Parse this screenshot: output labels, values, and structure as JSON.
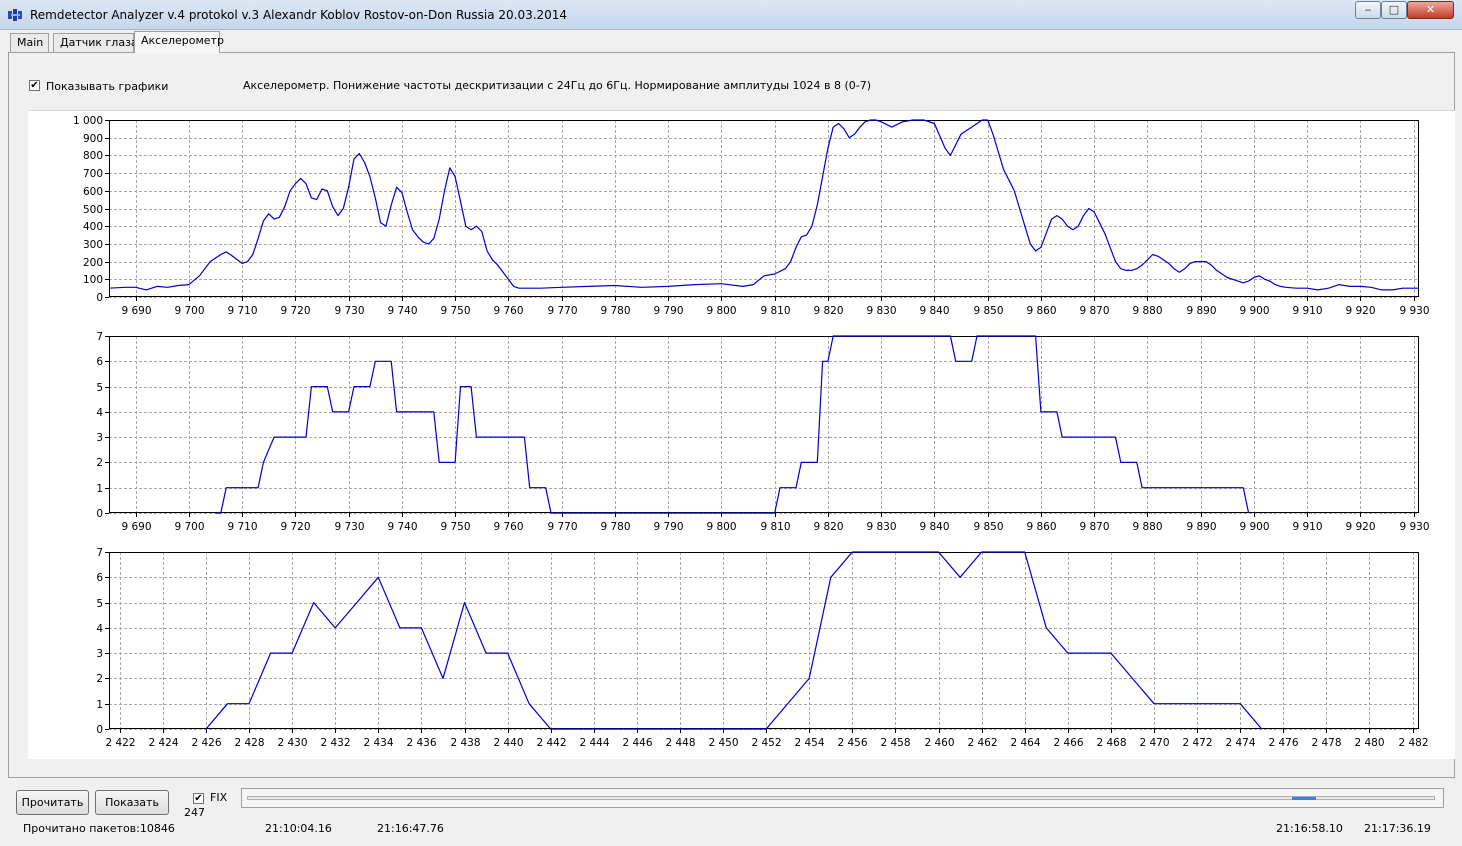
{
  "window": {
    "title": "Remdetector Analyzer v.4 protokol v.3 Alexandr Koblov Rostov-on-Don Russia 20.03.2014",
    "min_glyph": "‒",
    "max_glyph": "□",
    "close_glyph": "✕"
  },
  "tabs": [
    {
      "label": "Main"
    },
    {
      "label": "Датчик глаза"
    },
    {
      "label": "Акселерометр"
    }
  ],
  "controls": {
    "show_graphs_label": "Показывать графики",
    "show_graphs_checked": true,
    "description": "Акселерометр. Понижение частоты дескритизации с 24Гц до 6Гц. Нормирование амплитуды 1024 в 8 (0-7)",
    "check_glyph": "✔"
  },
  "bottom": {
    "read_button": "Прочитать",
    "show_button": "Показать",
    "fix_label": "FIX",
    "fix_checked": true,
    "fix_value": "247",
    "slider_position": 0.89
  },
  "status": {
    "packets": "Прочитано пакетов:10846",
    "time1": "21:10:04.16",
    "time2": "21:16:47.76",
    "time3": "21:16:58.10",
    "time4": "21:17:36.19"
  },
  "colors": {
    "line": "#0000cc",
    "grid": "#a8a8a8",
    "axis": "#000000"
  },
  "chart_data": [
    {
      "type": "line",
      "xlim": [
        9685,
        9931
      ],
      "ylim": [
        0,
        1000
      ],
      "yticks": [
        0,
        100,
        200,
        300,
        400,
        500,
        600,
        700,
        800,
        900,
        1000
      ],
      "ytick_labels": [
        "0",
        "100",
        "200",
        "300",
        "400",
        "500",
        "600",
        "700",
        "800",
        "900",
        "1 000"
      ],
      "xticks": [
        9690,
        9700,
        9710,
        9720,
        9730,
        9740,
        9750,
        9760,
        9770,
        9780,
        9790,
        9800,
        9810,
        9820,
        9830,
        9840,
        9850,
        9860,
        9870,
        9880,
        9890,
        9900,
        9910,
        9920,
        9930
      ],
      "xtick_labels": [
        "9 690",
        "9 700",
        "9 710",
        "9 720",
        "9 730",
        "9 740",
        "9 750",
        "9 760",
        "9 770",
        "9 780",
        "9 790",
        "9 800",
        "9 810",
        "9 820",
        "9 830",
        "9 840",
        "9 850",
        "9 860",
        "9 870",
        "9 880",
        "9 890",
        "9 900",
        "9 910",
        "9 920",
        "9 930"
      ],
      "grid": true,
      "x": [
        9685,
        9688,
        9690,
        9692,
        9694,
        9696,
        9698,
        9700,
        9702,
        9704,
        9706,
        9707,
        9708,
        9710,
        9711,
        9712,
        9713,
        9714,
        9715,
        9716,
        9717,
        9718,
        9719,
        9720,
        9721,
        9722,
        9723,
        9724,
        9725,
        9726,
        9727,
        9728,
        9729,
        9730,
        9731,
        9732,
        9733,
        9734,
        9735,
        9736,
        9737,
        9738,
        9739,
        9740,
        9741,
        9742,
        9743,
        9744,
        9745,
        9746,
        9747,
        9748,
        9749,
        9750,
        9751,
        9752,
        9753,
        9754,
        9755,
        9756,
        9757,
        9758,
        9759,
        9760,
        9761,
        9762,
        9763,
        9764,
        9766,
        9770,
        9775,
        9780,
        9785,
        9790,
        9795,
        9800,
        9804,
        9806,
        9808,
        9810,
        9812,
        9813,
        9814,
        9815,
        9816,
        9817,
        9818,
        9819,
        9820,
        9821,
        9822,
        9823,
        9824,
        9825,
        9826,
        9827,
        9828,
        9829,
        9830,
        9832,
        9834,
        9836,
        9838,
        9840,
        9842,
        9843,
        9844,
        9845,
        9846,
        9847,
        9848,
        9849,
        9850,
        9851,
        9852,
        9853,
        9854,
        9855,
        9856,
        9857,
        9858,
        9859,
        9860,
        9861,
        9862,
        9863,
        9864,
        9865,
        9866,
        9867,
        9868,
        9869,
        9870,
        9871,
        9872,
        9873,
        9874,
        9875,
        9876,
        9877,
        9878,
        9879,
        9880,
        9881,
        9882,
        9883,
        9884,
        9885,
        9886,
        9887,
        9888,
        9889,
        9890,
        9891,
        9892,
        9893,
        9894,
        9895,
        9896,
        9897,
        9898,
        9899,
        9900,
        9901,
        9902,
        9903,
        9904,
        9905,
        9906,
        9908,
        9910,
        9912,
        9914,
        9916,
        9918,
        9920,
        9922,
        9924,
        9926,
        9928,
        9931
      ],
      "values": [
        50,
        55,
        55,
        40,
        60,
        55,
        65,
        70,
        120,
        200,
        240,
        255,
        235,
        190,
        200,
        240,
        330,
        430,
        470,
        440,
        450,
        510,
        600,
        640,
        670,
        640,
        560,
        550,
        610,
        600,
        510,
        460,
        500,
        620,
        780,
        810,
        760,
        680,
        560,
        420,
        400,
        520,
        620,
        590,
        480,
        380,
        340,
        310,
        300,
        330,
        440,
        600,
        730,
        680,
        540,
        400,
        380,
        400,
        370,
        260,
        210,
        180,
        140,
        100,
        60,
        50,
        50,
        50,
        50,
        55,
        60,
        65,
        55,
        60,
        70,
        75,
        60,
        70,
        120,
        130,
        160,
        200,
        280,
        340,
        350,
        400,
        520,
        680,
        840,
        960,
        980,
        950,
        900,
        920,
        960,
        990,
        1000,
        1000,
        990,
        960,
        990,
        1000,
        1000,
        980,
        840,
        800,
        860,
        920,
        940,
        960,
        980,
        1000,
        1000,
        920,
        820,
        720,
        660,
        600,
        500,
        400,
        300,
        260,
        280,
        360,
        440,
        460,
        440,
        400,
        380,
        400,
        460,
        500,
        480,
        420,
        360,
        280,
        200,
        160,
        150,
        150,
        160,
        180,
        210,
        240,
        230,
        210,
        190,
        160,
        140,
        160,
        190,
        200,
        200,
        200,
        180,
        150,
        130,
        110,
        100,
        90,
        80,
        90,
        110,
        120,
        100,
        90,
        70,
        60,
        55,
        50,
        50,
        40,
        50,
        70,
        60,
        60,
        55,
        40,
        40,
        50,
        50
      ],
      "line_color": "#0000cc"
    },
    {
      "type": "line",
      "xlim": [
        9685,
        9931
      ],
      "ylim": [
        0,
        7
      ],
      "yticks": [
        0,
        1,
        2,
        3,
        4,
        5,
        6,
        7
      ],
      "ytick_labels": [
        "0",
        "1",
        "2",
        "3",
        "4",
        "5",
        "6",
        "7"
      ],
      "xticks": [
        9690,
        9700,
        9710,
        9720,
        9730,
        9740,
        9750,
        9760,
        9770,
        9780,
        9790,
        9800,
        9810,
        9820,
        9830,
        9840,
        9850,
        9860,
        9870,
        9880,
        9890,
        9900,
        9910,
        9920,
        9930
      ],
      "xtick_labels": [
        "9 690",
        "9 700",
        "9 710",
        "9 720",
        "9 730",
        "9 740",
        "9 750",
        "9 760",
        "9 770",
        "9 780",
        "9 790",
        "9 800",
        "9 810",
        "9 820",
        "9 830",
        "9 840",
        "9 850",
        "9 860",
        "9 870",
        "9 880",
        "9 890",
        "9 900",
        "9 910",
        "9 920",
        "9 930"
      ],
      "grid": true,
      "x": [
        9705,
        9706,
        9707,
        9713,
        9714,
        9716,
        9722,
        9723,
        9726,
        9727,
        9730,
        9731,
        9734,
        9735,
        9738,
        9739,
        9746,
        9747,
        9750,
        9751,
        9753,
        9754,
        9758,
        9759,
        9763,
        9764,
        9767,
        9768,
        9810,
        9811,
        9814,
        9815,
        9818,
        9819,
        9820,
        9821,
        9824,
        9825,
        9843,
        9844,
        9847,
        9848,
        9859,
        9860,
        9863,
        9864,
        9874,
        9875,
        9878,
        9879,
        9898,
        9899
      ],
      "values": [
        0,
        0,
        1,
        1,
        2,
        3,
        3,
        5,
        5,
        4,
        4,
        5,
        5,
        6,
        6,
        4,
        4,
        2,
        2,
        5,
        5,
        3,
        3,
        3,
        3,
        1,
        1,
        0,
        0,
        1,
        1,
        2,
        2,
        6,
        6,
        7,
        7,
        7,
        7,
        6,
        6,
        7,
        7,
        4,
        4,
        3,
        3,
        2,
        2,
        1,
        1,
        0
      ],
      "line_color": "#0000cc"
    },
    {
      "type": "line",
      "xlim": [
        2421.5,
        2482.3
      ],
      "ylim": [
        0,
        7
      ],
      "yticks": [
        0,
        1,
        2,
        3,
        4,
        5,
        6,
        7
      ],
      "ytick_labels": [
        "0",
        "1",
        "2",
        "3",
        "4",
        "5",
        "6",
        "7"
      ],
      "xticks": [
        2422,
        2424,
        2426,
        2428,
        2430,
        2432,
        2434,
        2436,
        2438,
        2440,
        2442,
        2444,
        2446,
        2448,
        2450,
        2452,
        2454,
        2456,
        2458,
        2460,
        2462,
        2464,
        2466,
        2468,
        2470,
        2472,
        2474,
        2476,
        2478,
        2480,
        2482
      ],
      "xtick_labels": [
        "2 422",
        "2 424",
        "2 426",
        "2 428",
        "2 430",
        "2 432",
        "2 434",
        "2 436",
        "2 438",
        "2 440",
        "2 442",
        "2 444",
        "2 446",
        "2 448",
        "2 450",
        "2 452",
        "2 454",
        "2 456",
        "2 458",
        "2 460",
        "2 462",
        "2 464",
        "2 466",
        "2 468",
        "2 470",
        "2 472",
        "2 474",
        "2 476",
        "2 478",
        "2 480",
        "2 482"
      ],
      "grid": true,
      "x": [
        2426,
        2427,
        2428,
        2429,
        2430,
        2431,
        2432,
        2433,
        2434,
        2435,
        2436,
        2437,
        2438,
        2439,
        2440,
        2441,
        2442,
        2452,
        2454,
        2455,
        2456,
        2457,
        2458,
        2459,
        2460,
        2461,
        2462,
        2463,
        2464,
        2465,
        2466,
        2467,
        2468,
        2469,
        2470,
        2471,
        2472,
        2473,
        2474,
        2475
      ],
      "values": [
        0,
        1,
        1,
        3,
        3,
        5,
        4,
        5,
        6,
        4,
        4,
        2,
        5,
        3,
        3,
        1,
        0,
        0,
        2,
        6,
        7,
        7,
        7,
        7,
        7,
        6,
        7,
        7,
        7,
        4,
        3,
        3,
        3,
        2,
        1,
        1,
        1,
        1,
        1,
        0
      ],
      "line_color": "#0000cc"
    }
  ]
}
